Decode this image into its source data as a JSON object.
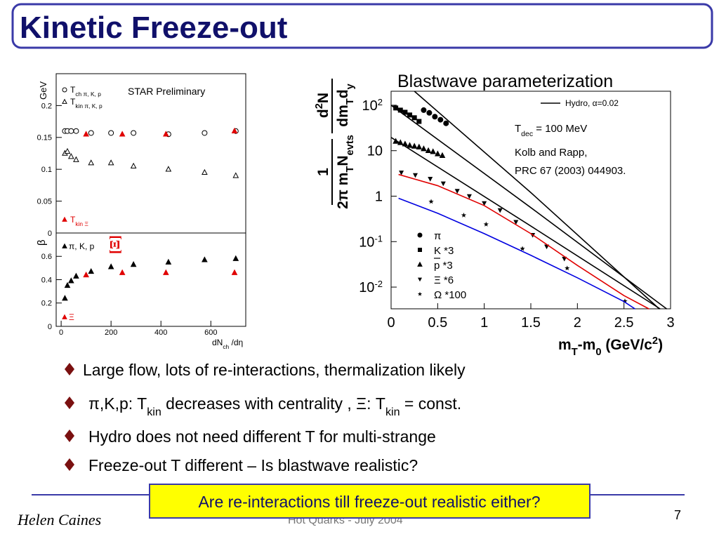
{
  "header": {
    "title": "Kinetic Freeze-out"
  },
  "chart_data": [
    {
      "type": "scatter",
      "y_label": "GeV",
      "annotation": "STAR Preliminary",
      "xlim": [
        -20,
        740
      ],
      "ylim": [
        0,
        0.25
      ],
      "yticks": [
        0,
        0.05,
        0.1,
        0.15,
        0.2
      ],
      "series": [
        {
          "name": [
            "T",
            {
              "sub": "ch π, K, p"
            }
          ],
          "marker": "circle-open",
          "color": "#000000",
          "x": [
            15,
            25,
            40,
            60,
            120,
            200,
            290,
            430,
            575,
            700
          ],
          "values": [
            0.16,
            0.16,
            0.16,
            0.16,
            0.157,
            0.157,
            0.157,
            0.155,
            0.157,
            0.16
          ]
        },
        {
          "name": [
            "T",
            {
              "sub": "kin π, K, p"
            }
          ],
          "marker": "triangle-open",
          "color": "#000000",
          "x": [
            15,
            25,
            40,
            60,
            120,
            200,
            290,
            430,
            575,
            700
          ],
          "values": [
            0.125,
            0.128,
            0.12,
            0.115,
            0.11,
            0.11,
            0.105,
            0.1,
            0.095,
            0.09
          ]
        },
        {
          "name": [
            "T",
            {
              "sub": "kin Ξ"
            }
          ],
          "marker": "triangle",
          "color": "#e00000",
          "x": [
            100,
            245,
            420,
            695
          ],
          "values": [
            0.155,
            0.155,
            0.155,
            0.16
          ]
        }
      ]
    },
    {
      "type": "scatter",
      "y_label": "β",
      "annotation": "[Ξ]",
      "x_label": [
        "dN",
        {
          "sub": "ch"
        },
        " /dη"
      ],
      "xlim": [
        -20,
        740
      ],
      "ylim": [
        0,
        0.8
      ],
      "xticks": [
        0,
        200,
        400,
        600
      ],
      "yticks": [
        0,
        0.2,
        0.4,
        0.6
      ],
      "series": [
        {
          "name": [
            "π, K, p"
          ],
          "marker": "triangle",
          "color": "#000000",
          "x": [
            15,
            25,
            40,
            60,
            120,
            200,
            290,
            430,
            575,
            700
          ],
          "values": [
            0.24,
            0.35,
            0.39,
            0.43,
            0.47,
            0.51,
            0.53,
            0.55,
            0.57,
            0.58
          ]
        },
        {
          "name": [
            "Ξ"
          ],
          "marker": "triangle",
          "color": "#e00000",
          "x": [
            100,
            245,
            420,
            695
          ],
          "values": [
            0.44,
            0.46,
            0.46,
            0.46
          ]
        }
      ]
    },
    {
      "type": "scatter",
      "title": "Blastwave parameterization",
      "log_y": true,
      "x_label": [
        "m",
        {
          "sub": "T"
        },
        "-m",
        {
          "sub": "0"
        },
        " (GeV/c",
        {
          "sup": "2"
        },
        ")"
      ],
      "y_label": {
        "left_num": [
          "1"
        ],
        "left_den": [
          "2π m",
          {
            "sub": "T"
          },
          "N",
          {
            "sub": "evts"
          }
        ],
        "right_num": [
          "d",
          {
            "sup": "2"
          },
          "N"
        ],
        "right_den": [
          "dm",
          {
            "sub": "T"
          },
          "d",
          {
            "sub": "y"
          }
        ]
      },
      "annotations": [
        [
          "T",
          {
            "sub": "dec"
          },
          " = 100 MeV"
        ],
        [
          "Kolb and Rapp,"
        ],
        [
          "PRC 67 (2003) 044903."
        ]
      ],
      "xlim": [
        0,
        3
      ],
      "ylim": [
        0.00333,
        203
      ],
      "xticks": [
        0,
        0.5,
        1,
        1.5,
        2,
        2.5,
        3
      ],
      "yticks": [
        {
          "value": 0.01,
          "label": "10",
          "sup": "-2"
        },
        {
          "value": 0.1,
          "label": "10",
          "sup": "-1"
        },
        1,
        10,
        {
          "value": 100,
          "label": "10",
          "sup": "2"
        }
      ],
      "series": [
        {
          "name": [
            "π"
          ],
          "marker": "circle",
          "color": "#000000",
          "x": [
            0.35,
            0.41,
            0.47,
            0.53,
            0.59
          ],
          "values": [
            78,
            68,
            56,
            48,
            40
          ]
        },
        {
          "name": [
            "K *3"
          ],
          "marker": "square",
          "color": "#000000",
          "x": [
            0.05,
            0.1,
            0.15,
            0.2,
            0.25,
            0.3
          ],
          "values": [
            87,
            78,
            70,
            61,
            53,
            44
          ]
        },
        {
          "name": [
            "p *3"
          ],
          "marker": "triangle",
          "color": "#000000",
          "x": [
            0.05,
            0.1,
            0.15,
            0.2,
            0.25,
            0.3,
            0.35,
            0.4,
            0.45,
            0.5,
            0.55
          ],
          "values": [
            16,
            15,
            14,
            13,
            12.5,
            12,
            11,
            10,
            9.5,
            8.5,
            7.8
          ]
        },
        {
          "name": [
            "Ξ *6"
          ],
          "marker": "triangle-down",
          "color": "#000000",
          "x": [
            0.11,
            0.26,
            0.42,
            0.56,
            0.71,
            0.84,
            1.0,
            1.17,
            1.34,
            1.52,
            1.67,
            1.86
          ],
          "values": [
            3.3,
            2.9,
            2.4,
            1.9,
            1.3,
            1.0,
            0.7,
            0.49,
            0.27,
            0.14,
            0.078,
            0.042
          ]
        },
        {
          "name": [
            "Ω *100"
          ],
          "marker": "star",
          "color": "#000000",
          "x": [
            0.43,
            0.78,
            1.02,
            1.41,
            1.89,
            2.51
          ],
          "values": [
            0.76,
            0.38,
            0.24,
            0.07,
            0.026,
            0.0049
          ]
        },
        {
          "name": [
            "Hydro, α=0.02"
          ],
          "type": "line",
          "color": "#000000",
          "x": [
            0.25,
            1.5,
            2.88
          ],
          "values": [
            203,
            1.2,
            0.0033
          ]
        },
        {
          "type": "line",
          "color": "#000000",
          "x": [
            0,
            1.5,
            2.96
          ],
          "values": [
            100,
            0.56,
            0.0033
          ]
        },
        {
          "type": "line",
          "color": "#000000",
          "x": [
            0,
            1.5,
            2.89
          ],
          "values": [
            19.6,
            0.22,
            0.0033
          ]
        },
        {
          "type": "line",
          "color": "#e00000",
          "x": [
            0.08,
            0.5,
            1,
            1.5,
            2,
            2.5,
            2.77
          ],
          "values": [
            3,
            1.7,
            0.62,
            0.15,
            0.03,
            0.0065,
            0.0033
          ]
        },
        {
          "type": "line",
          "color": "#0000e0",
          "x": [
            0.08,
            0.5,
            1,
            1.5,
            2,
            2.5,
            2.62
          ],
          "values": [
            0.9,
            0.42,
            0.15,
            0.05,
            0.016,
            0.0048,
            0.0033
          ]
        }
      ]
    }
  ],
  "bullets": [
    [
      "Large flow, lots of re-interactions, thermalization likely"
    ],
    [
      "π,K,p: T",
      {
        "sub": "kin"
      },
      " decreases with centrality , Ξ: T",
      {
        "sub": "kin"
      },
      " = const."
    ],
    [
      "Hydro does not need different T for multi-strange"
    ],
    [
      "Freeze-out T different  – Is blastwave realistic?"
    ]
  ],
  "callout": "Are re-interactions till freeze-out realistic either?",
  "footer": {
    "author": "Helen Caines",
    "event": "Hot Quarks - July 2004",
    "page": 7
  }
}
